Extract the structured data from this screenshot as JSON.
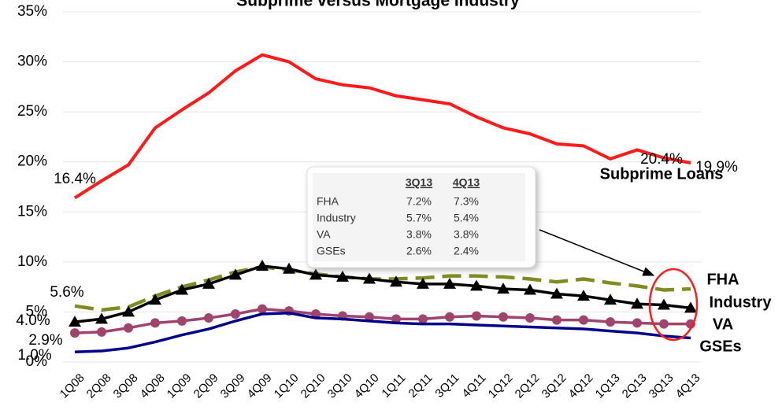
{
  "chart_data": {
    "type": "line",
    "title": "Subprime versus Mortgage Industry",
    "categories": [
      "1Q08",
      "2Q08",
      "3Q08",
      "4Q08",
      "1Q09",
      "2Q09",
      "3Q09",
      "4Q09",
      "1Q10",
      "2Q10",
      "3Q10",
      "4Q10",
      "1Q11",
      "2Q11",
      "3Q11",
      "4Q11",
      "1Q12",
      "2Q12",
      "3Q12",
      "4Q12",
      "1Q13",
      "2Q13",
      "3Q13",
      "4Q13"
    ],
    "ylim": [
      0,
      35
    ],
    "yticks": [
      {
        "value": 0,
        "label": "0%"
      },
      {
        "value": 5,
        "label": "5%"
      },
      {
        "value": 10,
        "label": "10%"
      },
      {
        "value": 15,
        "label": "15%"
      },
      {
        "value": 20,
        "label": "20%"
      },
      {
        "value": 25,
        "label": "25%"
      },
      {
        "value": 30,
        "label": "30%"
      },
      {
        "value": 35,
        "label": "35%"
      }
    ],
    "grid": true,
    "series": [
      {
        "name": "Subprime Loans",
        "color": "#ff1a1a",
        "values": [
          16.4,
          18.1,
          19.7,
          23.4,
          25.2,
          26.9,
          29.1,
          30.7,
          30.0,
          28.3,
          27.7,
          27.4,
          26.6,
          26.2,
          25.8,
          24.5,
          23.4,
          22.8,
          21.8,
          21.6,
          20.3,
          21.2,
          20.4,
          19.9
        ],
        "value_labels": [
          "16.4%",
          null,
          null,
          null,
          null,
          null,
          null,
          null,
          null,
          null,
          null,
          null,
          null,
          null,
          null,
          null,
          null,
          null,
          null,
          null,
          null,
          null,
          "20.4%",
          "19.9%"
        ]
      },
      {
        "name": "FHA",
        "color": "#7f8c1f",
        "dashed": true,
        "values": [
          5.6,
          5.2,
          5.5,
          6.6,
          7.5,
          8.2,
          9.0,
          9.5,
          9.2,
          8.8,
          8.5,
          8.3,
          8.3,
          8.4,
          8.6,
          8.6,
          8.5,
          8.3,
          8.0,
          8.3,
          7.9,
          7.6,
          7.2,
          7.3
        ],
        "value_labels": [
          "5.6%",
          null,
          null,
          null,
          null,
          null,
          null,
          null,
          null,
          null,
          null,
          null,
          null,
          null,
          null,
          null,
          null,
          null,
          null,
          null,
          null,
          null,
          null,
          null
        ]
      },
      {
        "name": "Industry",
        "color": "#000000",
        "marker": "triangle",
        "values": [
          4.0,
          4.3,
          5.0,
          6.2,
          7.2,
          7.8,
          8.7,
          9.6,
          9.3,
          8.7,
          8.5,
          8.3,
          8.0,
          7.8,
          7.8,
          7.6,
          7.3,
          7.2,
          6.8,
          6.6,
          6.2,
          5.8,
          5.7,
          5.4
        ],
        "value_labels": [
          "4.0%",
          null,
          null,
          null,
          null,
          null,
          null,
          null,
          null,
          null,
          null,
          null,
          null,
          null,
          null,
          null,
          null,
          null,
          null,
          null,
          null,
          null,
          null,
          null
        ]
      },
      {
        "name": "VA",
        "color": "#a0446e",
        "marker": "circle",
        "values": [
          2.9,
          3.0,
          3.4,
          3.9,
          4.1,
          4.4,
          4.8,
          5.3,
          5.1,
          4.8,
          4.6,
          4.5,
          4.3,
          4.3,
          4.5,
          4.6,
          4.5,
          4.4,
          4.2,
          4.2,
          4.0,
          3.9,
          3.8,
          3.8
        ],
        "value_labels": [
          "2.9%",
          null,
          null,
          null,
          null,
          null,
          null,
          null,
          null,
          null,
          null,
          null,
          null,
          null,
          null,
          null,
          null,
          null,
          null,
          null,
          null,
          null,
          null,
          null
        ]
      },
      {
        "name": "GSEs",
        "color": "#00008b",
        "values": [
          1.0,
          1.1,
          1.4,
          2.0,
          2.7,
          3.3,
          4.1,
          4.8,
          4.9,
          4.4,
          4.3,
          4.1,
          3.9,
          3.8,
          3.8,
          3.7,
          3.6,
          3.5,
          3.4,
          3.3,
          3.1,
          2.9,
          2.6,
          2.4
        ],
        "value_labels": [
          "1.0%",
          null,
          null,
          null,
          null,
          null,
          null,
          null,
          null,
          null,
          null,
          null,
          null,
          null,
          null,
          null,
          null,
          null,
          null,
          null,
          null,
          null,
          null,
          null
        ]
      }
    ],
    "inset": {
      "header": [
        "3Q13",
        "4Q13"
      ],
      "rows": [
        [
          "FHA",
          "7.2%",
          "7.3%"
        ],
        [
          "Industry",
          "5.7%",
          "5.4%"
        ],
        [
          "VA",
          "3.8%",
          "3.8%"
        ],
        [
          "GSEs",
          "2.6%",
          "2.4%"
        ]
      ]
    }
  }
}
